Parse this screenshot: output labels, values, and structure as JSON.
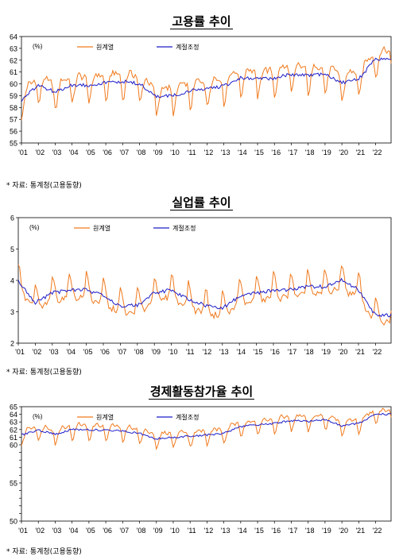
{
  "charts": [
    {
      "title": "고용률 추이",
      "source": "*  자료: 통계청(고용동향)"
    },
    {
      "title": "실업률 추이",
      "source": "*  자료: 통계청(고용동향)"
    },
    {
      "title": "경제활동참가율 추이",
      "source": "*  자료: 통계청(고용동향)"
    }
  ],
  "colors": {
    "original": "#f07a1e",
    "adjusted": "#1c1cc8"
  },
  "chart_data": [
    {
      "type": "line",
      "title": "고용률 추이",
      "unit_label": "(%)",
      "x_categories": [
        "'01",
        "'02",
        "'03",
        "'04",
        "'05",
        "'06",
        "'07",
        "'08",
        "'09",
        "'10",
        "'11",
        "'12",
        "'13",
        "'14",
        "'15",
        "'16",
        "'17",
        "'18",
        "'19",
        "'20",
        "'21",
        "'22"
      ],
      "ylim": [
        55,
        64
      ],
      "yticks": [
        55,
        56,
        57,
        58,
        59,
        60,
        61,
        62,
        63,
        64
      ],
      "legend": "top-left",
      "series": [
        {
          "name": "원계열",
          "amp": 1.6,
          "yearly": [
            58.6,
            59.9,
            59.3,
            59.9,
            59.9,
            60.1,
            60.2,
            60.0,
            58.9,
            59.0,
            59.4,
            59.6,
            59.8,
            60.5,
            60.4,
            60.5,
            60.8,
            60.7,
            60.8,
            60.1,
            60.4,
            62.1
          ]
        },
        {
          "name": "계절조정",
          "amp": 0.3,
          "yearly": [
            58.6,
            59.9,
            59.3,
            59.9,
            59.9,
            60.1,
            60.2,
            60.0,
            58.9,
            59.0,
            59.4,
            59.6,
            59.8,
            60.5,
            60.4,
            60.5,
            60.8,
            60.7,
            60.8,
            60.1,
            60.4,
            62.1
          ]
        }
      ]
    },
    {
      "type": "line",
      "title": "실업률 추이",
      "unit_label": "(%)",
      "x_categories": [
        "'01",
        "'02",
        "'03",
        "'04",
        "'05",
        "'06",
        "'07",
        "'08",
        "'09",
        "'10",
        "'11",
        "'12",
        "'13",
        "'14",
        "'15",
        "'16",
        "'17",
        "'18",
        "'19",
        "'20",
        "'21",
        "'22"
      ],
      "ylim": [
        2,
        6
      ],
      "yticks": [
        2,
        3,
        4,
        5,
        6
      ],
      "legend": "top-left",
      "series": [
        {
          "name": "원계열",
          "amp": 0.55,
          "yearly": [
            4.0,
            3.3,
            3.6,
            3.7,
            3.7,
            3.5,
            3.2,
            3.2,
            3.6,
            3.7,
            3.4,
            3.2,
            3.1,
            3.5,
            3.6,
            3.7,
            3.7,
            3.8,
            3.8,
            4.0,
            3.7,
            2.9
          ]
        },
        {
          "name": "계절조정",
          "amp": 0.12,
          "yearly": [
            4.0,
            3.3,
            3.6,
            3.7,
            3.7,
            3.5,
            3.2,
            3.2,
            3.6,
            3.7,
            3.4,
            3.2,
            3.1,
            3.5,
            3.6,
            3.7,
            3.7,
            3.8,
            3.8,
            4.0,
            3.7,
            2.9
          ]
        }
      ]
    },
    {
      "type": "line",
      "title": "경제활동참가율 추이",
      "unit_label": "(%)",
      "x_categories": [
        "'01",
        "'02",
        "'03",
        "'04",
        "'05",
        "'06",
        "'07",
        "'08",
        "'09",
        "'10",
        "'11",
        "'12",
        "'13",
        "'14",
        "'15",
        "'16",
        "'17",
        "'18",
        "'19",
        "'20",
        "'21",
        "'22"
      ],
      "ylim": [
        50,
        65
      ],
      "yticks": [
        50,
        51,
        52,
        53,
        54,
        55,
        56,
        57,
        58,
        59,
        60,
        61,
        62,
        63,
        64,
        65
      ],
      "ytick_labels": [
        "50",
        "",
        "",
        "",
        "",
        "55",
        "",
        "",
        "",
        "",
        "60",
        "61",
        "62",
        "63",
        "64",
        "65"
      ],
      "legend": "top-left",
      "series": [
        {
          "name": "원계열",
          "amp": 1.4,
          "yearly": [
            61.3,
            61.9,
            61.4,
            62.0,
            62.0,
            61.9,
            61.8,
            61.5,
            60.8,
            61.0,
            61.1,
            61.3,
            61.5,
            62.4,
            62.6,
            62.8,
            63.2,
            63.1,
            63.3,
            62.5,
            62.8,
            64.0
          ]
        },
        {
          "name": "계절조정",
          "amp": 0.25,
          "yearly": [
            61.3,
            61.9,
            61.4,
            62.0,
            62.0,
            61.9,
            61.8,
            61.5,
            60.8,
            61.0,
            61.1,
            61.3,
            61.5,
            62.4,
            62.6,
            62.8,
            63.2,
            63.1,
            63.3,
            62.5,
            62.8,
            64.0
          ]
        }
      ]
    }
  ]
}
